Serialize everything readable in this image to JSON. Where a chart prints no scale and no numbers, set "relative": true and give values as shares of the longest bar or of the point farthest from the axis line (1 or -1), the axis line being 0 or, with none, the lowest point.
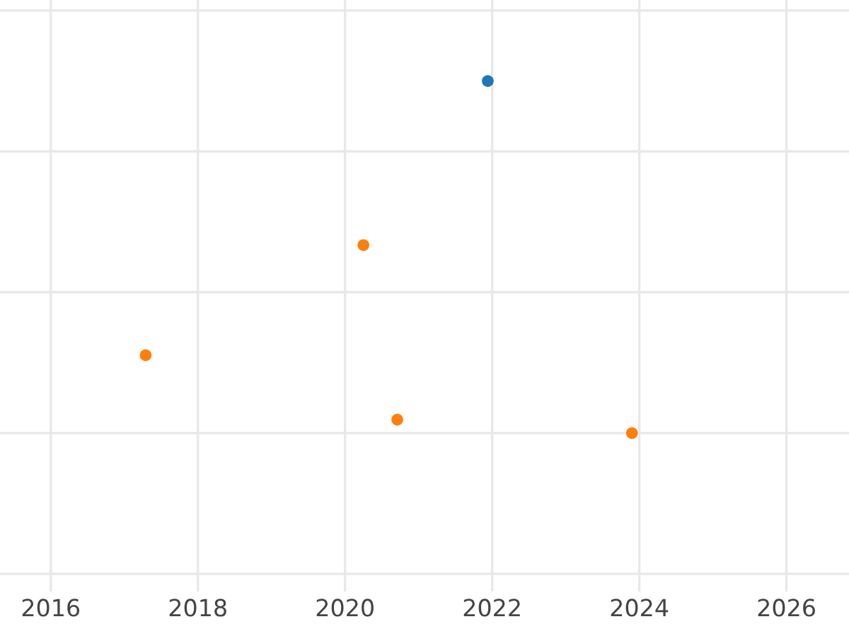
{
  "chart_data": {
    "type": "scatter",
    "relative": true,
    "series": [
      {
        "color": "#1f77b4",
        "x": [
          2021.94
        ],
        "values": [
          1
        ]
      },
      {
        "color": "#ff7f0e",
        "x": [
          2017.29,
          2020.25,
          2020.71,
          2023.9
        ],
        "values": [
          0.221,
          0.534,
          0.038,
          0
        ]
      }
    ],
    "xlim": [
      2015.31,
      2026.85
    ],
    "xticks": [
      2016,
      2018,
      2020,
      2022,
      2024,
      2026
    ],
    "grid": true,
    "marker": "circle",
    "tick_labels": "x"
  }
}
